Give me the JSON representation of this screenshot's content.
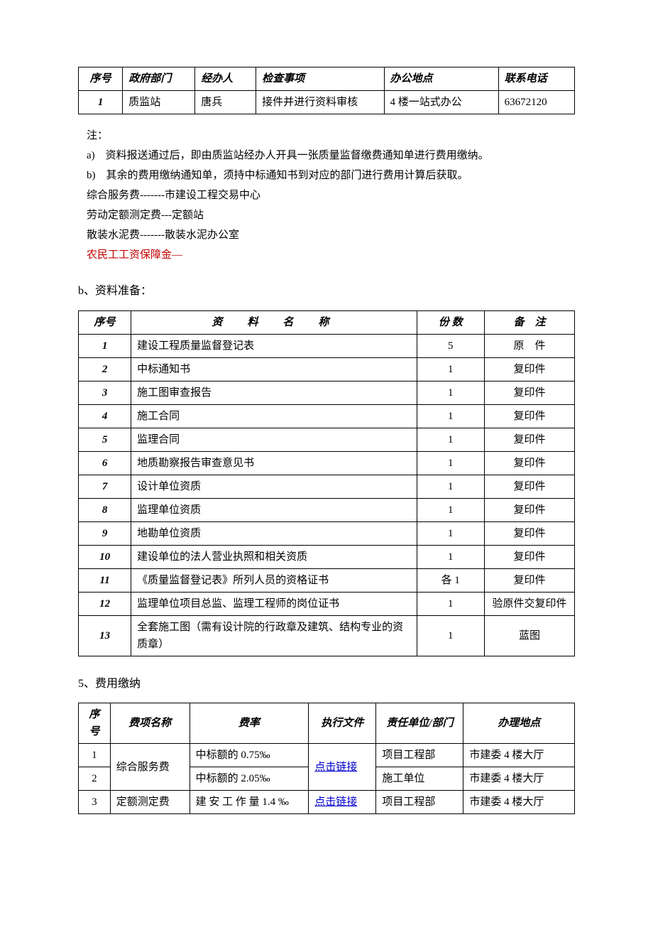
{
  "table1": {
    "headers": [
      "序号",
      "政府部门",
      "经办人",
      "检查事项",
      "办公地点",
      "联系电话"
    ],
    "rows": [
      [
        "1",
        "质监站",
        "唐兵",
        "接件并进行资料审核",
        "4 楼一站式办公",
        "63672120"
      ]
    ]
  },
  "notes": {
    "lead": "注：",
    "a": "a)　资料报送通过后，即由质监站经办人开具一张质量监督缴费通知单进行费用缴纳。",
    "b": "b)　其余的费用缴纳通知单，须持中标通知书到对应的部门进行费用计算后获取。",
    "l1": "综合服务费-------市建设工程交易中心",
    "l2": "劳动定额测定费---定额站",
    "l3": "散装水泥费-------散装水泥办公室",
    "l4": "农民工工资保障金—"
  },
  "sectB": "b、资料准备：",
  "table2": {
    "headers": [
      "序号",
      "资　料　名　称",
      "份 数",
      "备　注"
    ],
    "rows": [
      [
        "1",
        "建设工程质量监督登记表",
        "5",
        "原　件"
      ],
      [
        "2",
        "中标通知书",
        "1",
        "复印件"
      ],
      [
        "3",
        "施工图审查报告",
        "1",
        "复印件"
      ],
      [
        "4",
        "施工合同",
        "1",
        "复印件"
      ],
      [
        "5",
        "监理合同",
        "1",
        "复印件"
      ],
      [
        "6",
        "地质勘察报告审查意见书",
        "1",
        "复印件"
      ],
      [
        "7",
        "设计单位资质",
        "1",
        "复印件"
      ],
      [
        "8",
        "监理单位资质",
        "1",
        "复印件"
      ],
      [
        "9",
        "地勘单位资质",
        "1",
        "复印件"
      ],
      [
        "10",
        "建设单位的法人营业执照和相关资质",
        "1",
        "复印件"
      ],
      [
        "11",
        "《质量监督登记表》所列人员的资格证书",
        "各 1",
        "复印件"
      ],
      [
        "12",
        "监理单位项目总监、监理工程师的岗位证书",
        "1",
        "验原件交复印件"
      ],
      [
        "13",
        "全套施工图（需有设计院的行政章及建筑、结构专业的资质章）",
        "1",
        "蓝图"
      ]
    ]
  },
  "sect5": "5、费用缴纳",
  "table3": {
    "headers": [
      "序号",
      "费项名称",
      "费率",
      "执行文件",
      "责任单位/部门",
      "办理地点"
    ],
    "link": "点击链接",
    "fee1": "综合服务费",
    "fee2": "定额测定费",
    "rows": [
      [
        "1",
        "",
        "中标额的 0.75‰",
        "",
        "项目工程部",
        "市建委 4 楼大厅"
      ],
      [
        "2",
        "",
        "中标额的 2.05‰",
        "",
        "施工单位",
        "市建委 4 楼大厅"
      ],
      [
        "3",
        "",
        "建 安 工 作 量 1.4 ‰",
        "",
        "项目工程部",
        "市建委 4 楼大厅"
      ]
    ]
  }
}
